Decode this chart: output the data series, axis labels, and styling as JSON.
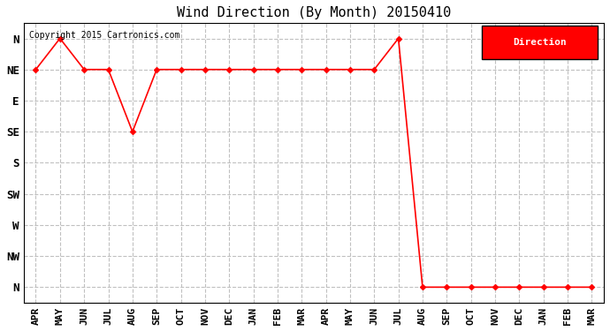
{
  "title": "Wind Direction (By Month) 20150410",
  "copyright": "Copyright 2015 Cartronics.com",
  "legend_label": "Direction",
  "legend_bg": "#ff0000",
  "legend_text_color": "#ffffff",
  "x_labels": [
    "APR",
    "MAY",
    "JUN",
    "JUL",
    "AUG",
    "SEP",
    "OCT",
    "NOV",
    "DEC",
    "JAN",
    "FEB",
    "MAR",
    "APR",
    "MAY",
    "JUN",
    "JUL",
    "AUG",
    "SEP",
    "OCT",
    "NOV",
    "DEC",
    "JAN",
    "FEB",
    "MAR"
  ],
  "y_labels": [
    "N",
    "NW",
    "W",
    "SW",
    "S",
    "SE",
    "E",
    "NE",
    "N"
  ],
  "line_color": "#ff0000",
  "marker": "D",
  "marker_size": 3,
  "line_width": 1.2,
  "background_color": "#ffffff",
  "grid_color": "#c0c0c0",
  "title_fontsize": 11,
  "data_x": [
    0,
    1,
    2,
    3,
    4,
    5,
    6,
    7,
    8,
    9,
    10,
    11,
    12,
    13,
    14,
    15,
    16,
    17,
    18,
    19,
    20,
    21,
    22,
    23
  ],
  "data_y": [
    7,
    8,
    7,
    7,
    5,
    7,
    7,
    7,
    7,
    7,
    7,
    7,
    7,
    7,
    7,
    8,
    0,
    0,
    0,
    0,
    0,
    0,
    0,
    0
  ]
}
